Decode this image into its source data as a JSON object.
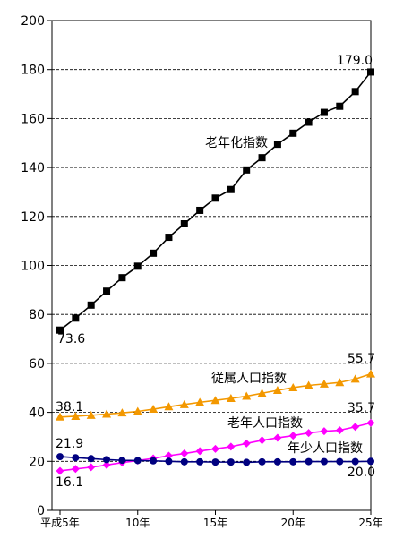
{
  "chart_data": {
    "type": "line",
    "x": [
      "平成5年",
      "6",
      "7",
      "8",
      "9",
      "10年",
      "11",
      "12",
      "13",
      "14",
      "15年",
      "16",
      "17",
      "18",
      "19",
      "20年",
      "21",
      "22",
      "23",
      "24",
      "25年"
    ],
    "x_tick_labels": [
      "平成5年",
      "10年",
      "15年",
      "20年",
      "25年"
    ],
    "ylim": [
      0,
      200
    ],
    "y_ticks": [
      0,
      20,
      40,
      60,
      80,
      100,
      120,
      140,
      160,
      180,
      200
    ],
    "grid": "horizontal dashed",
    "series": [
      {
        "name": "老年化指数",
        "color": "#000000",
        "marker": "square",
        "values": [
          73.6,
          78.5,
          83.8,
          89.5,
          95.0,
          99.7,
          105.0,
          111.5,
          117.0,
          122.5,
          127.5,
          131.0,
          139.0,
          144.0,
          149.5,
          154.0,
          158.5,
          162.5,
          165.0,
          171.0,
          179.0
        ]
      },
      {
        "name": "従属人口指数",
        "color": "#F39800",
        "marker": "triangle",
        "values": [
          38.1,
          38.4,
          38.8,
          39.3,
          39.8,
          40.4,
          41.3,
          42.3,
          43.2,
          44.1,
          44.9,
          45.7,
          46.6,
          47.8,
          49.0,
          50.1,
          51.0,
          51.6,
          52.2,
          53.6,
          55.7
        ]
      },
      {
        "name": "老年人口指数",
        "color": "#FF00FF",
        "marker": "diamond",
        "values": [
          16.1,
          16.9,
          17.6,
          18.5,
          19.5,
          20.3,
          21.2,
          22.3,
          23.2,
          24.2,
          25.1,
          26.0,
          27.3,
          28.6,
          29.6,
          30.5,
          31.6,
          32.3,
          32.7,
          34.1,
          35.7
        ]
      },
      {
        "name": "年少人口指数",
        "color": "#000080",
        "marker": "circle",
        "values": [
          21.9,
          21.5,
          21.1,
          20.7,
          20.4,
          20.3,
          20.2,
          20.0,
          19.8,
          19.8,
          19.7,
          19.7,
          19.6,
          19.8,
          19.8,
          19.8,
          19.9,
          19.9,
          19.9,
          19.9,
          20.0
        ]
      }
    ],
    "annotations": [
      {
        "text": "179.0",
        "series": 0,
        "point": "last"
      },
      {
        "text": "73.6",
        "series": 0,
        "point": "first"
      },
      {
        "text": "55.7",
        "series": 1,
        "point": "last"
      },
      {
        "text": "38.1",
        "series": 1,
        "point": "first"
      },
      {
        "text": "35.7",
        "series": 2,
        "point": "last"
      },
      {
        "text": "16.1",
        "series": 2,
        "point": "first"
      },
      {
        "text": "21.9",
        "series": 3,
        "point": "first"
      },
      {
        "text": "20.0",
        "series": 3,
        "point": "last"
      }
    ],
    "series_labels": [
      "老年化指数",
      "従属人口指数",
      "老年人口指数",
      "年少人口指数"
    ]
  }
}
